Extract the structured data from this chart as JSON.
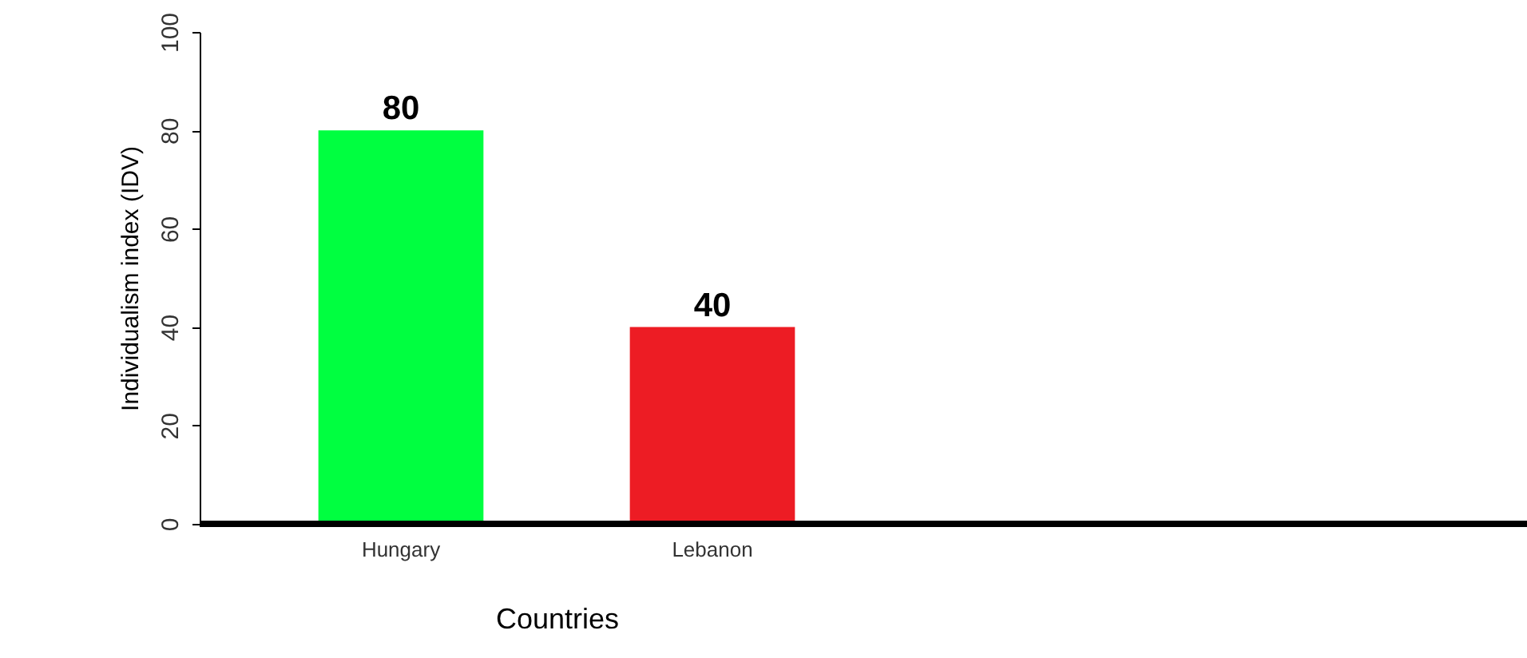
{
  "chart_data": {
    "type": "bar",
    "xlabel": "Countries",
    "ylabel": "Individualism index (IDV)",
    "categories": [
      "Hungary",
      "Lebanon"
    ],
    "values": [
      80,
      40
    ],
    "colors": [
      "#00ff40",
      "#ed1c24"
    ],
    "ylim": [
      0,
      100
    ],
    "yticks": [
      0,
      20,
      40,
      60,
      80,
      100
    ],
    "data_labels": true,
    "grid": false,
    "legend": false
  }
}
